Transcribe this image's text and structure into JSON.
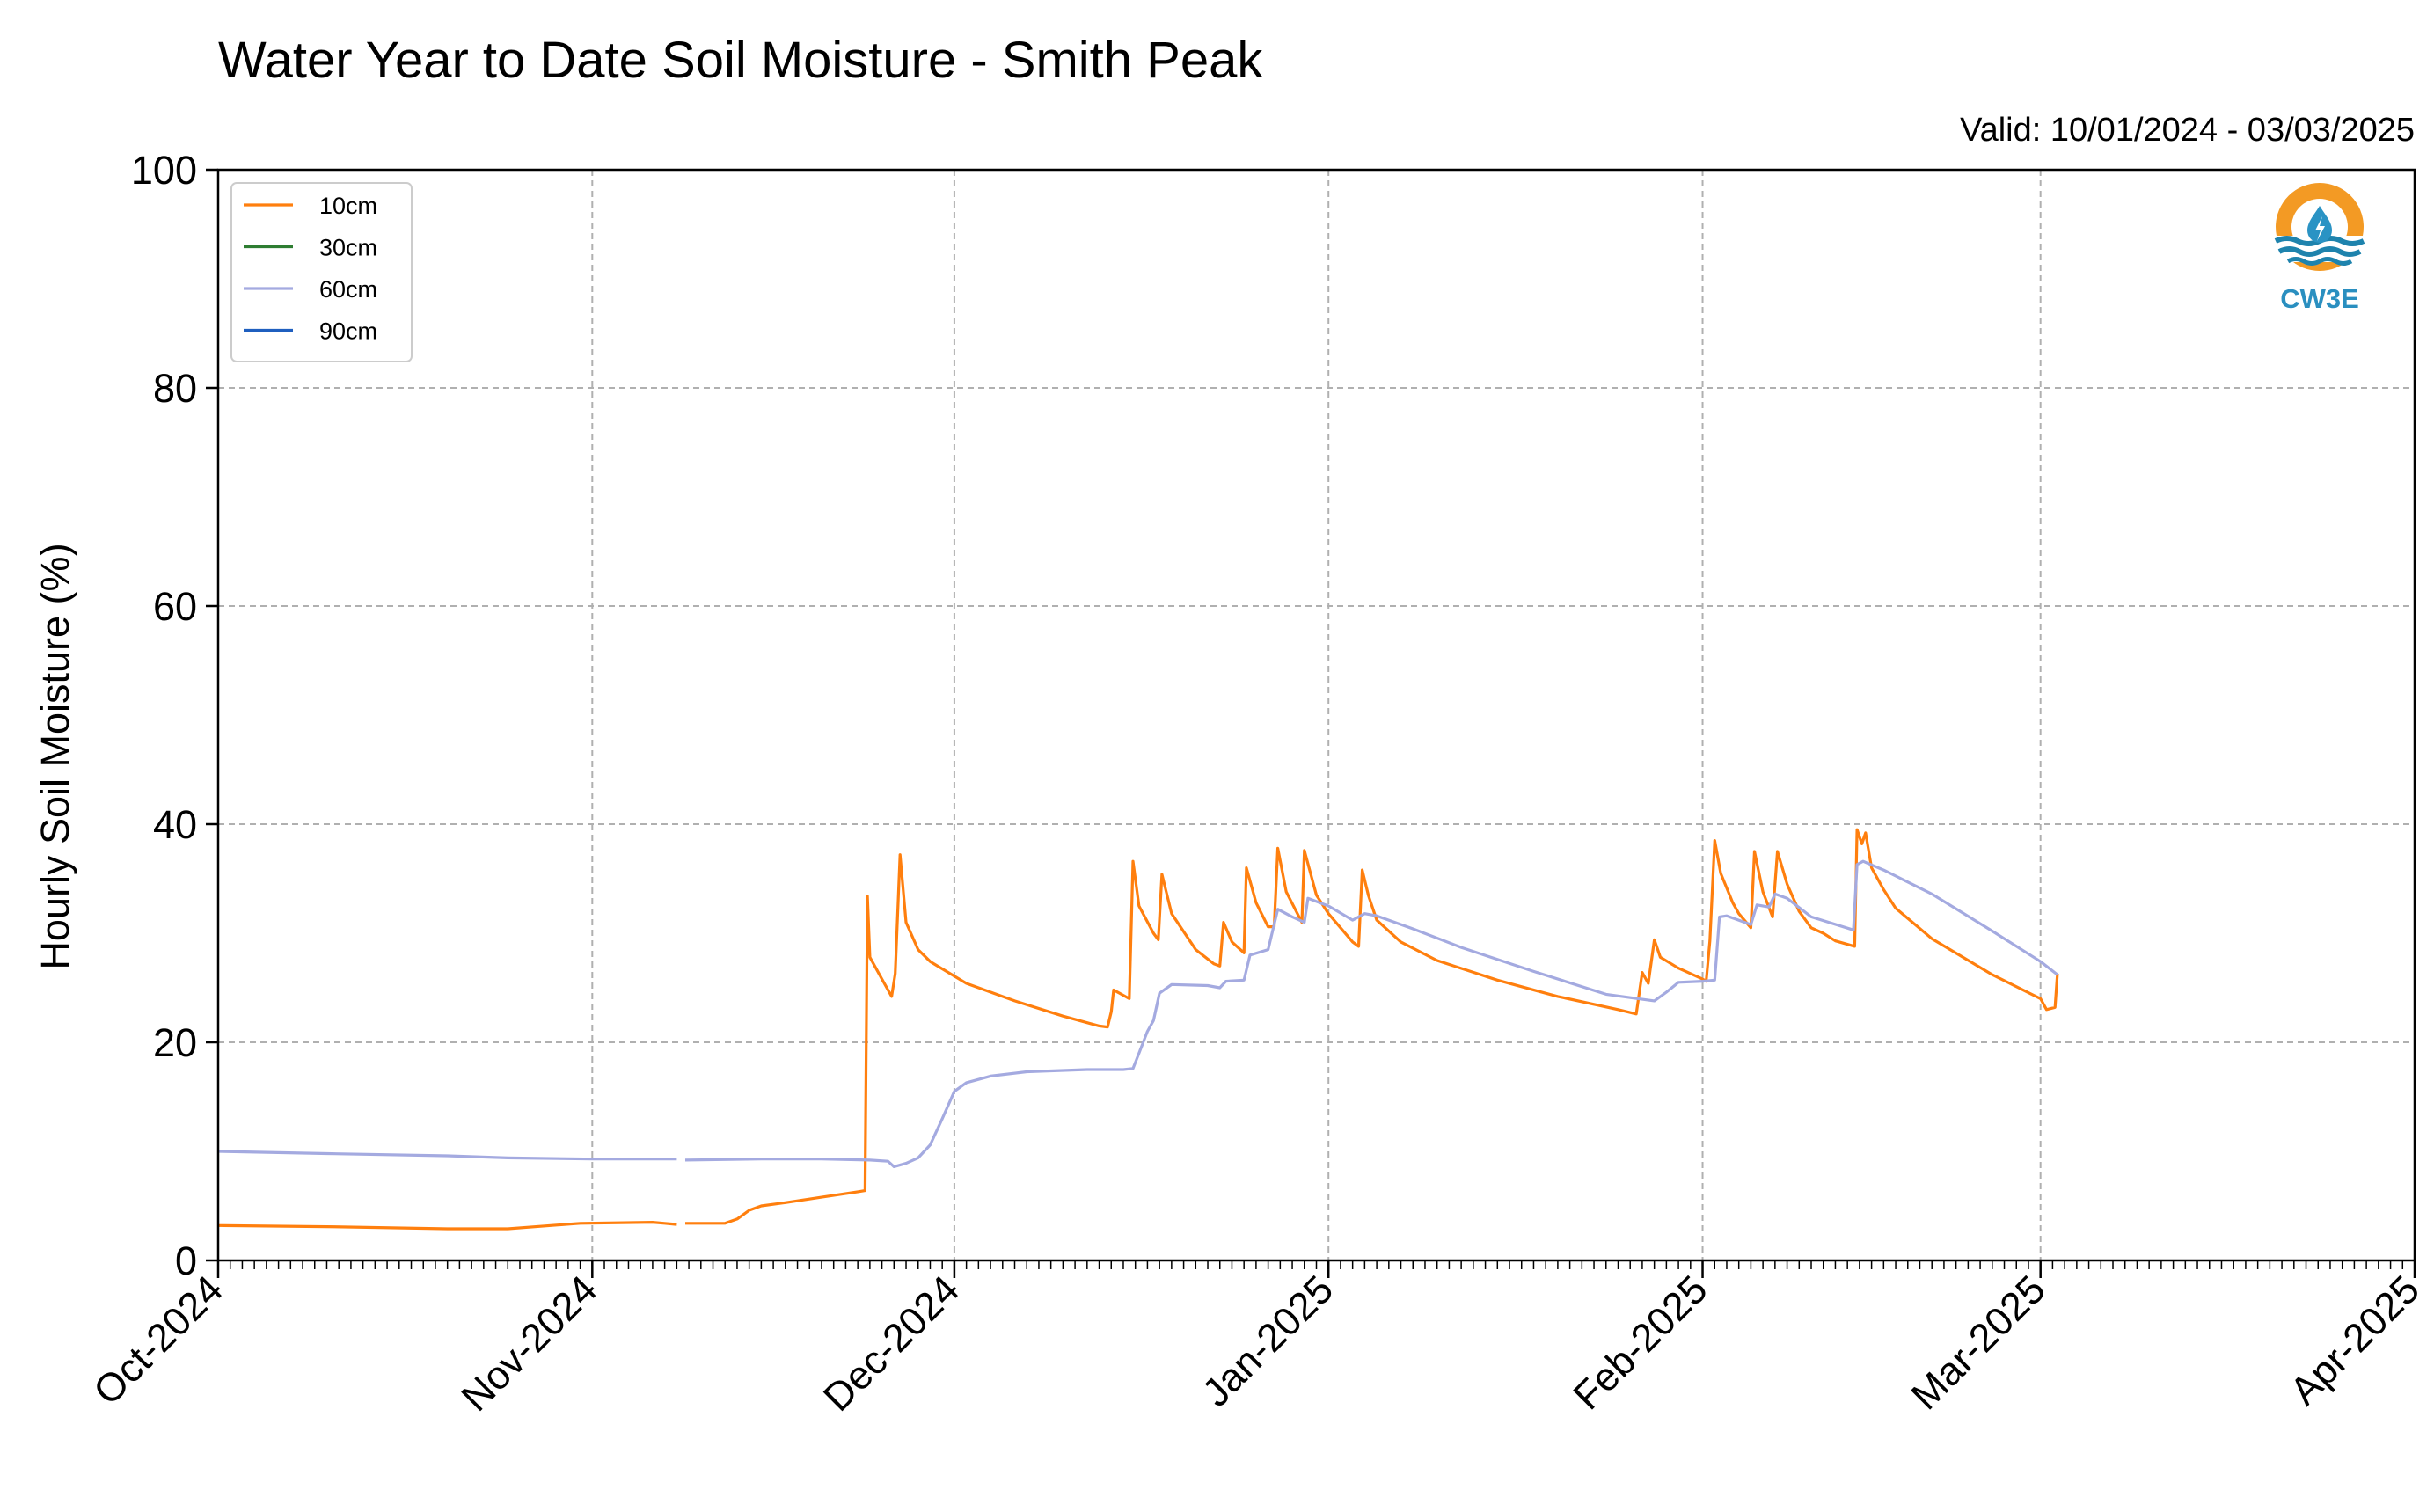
{
  "chart_data": {
    "type": "line",
    "title": "Water Year to Date Soil Moisture - Smith Peak",
    "subtitle": "Valid: 10/01/2024 - 03/03/2025",
    "xlabel": "",
    "ylabel": "Hourly Soil Moisture (%)",
    "xlim": [
      "2024-10-01",
      "2025-04-01"
    ],
    "ylim": [
      0,
      100
    ],
    "x_ticks": [
      "2024-10-01",
      "2024-11-01",
      "2024-12-01",
      "2025-01-01",
      "2025-02-01",
      "2025-03-01",
      "2025-04-01"
    ],
    "x_tick_labels": [
      "Oct-2024",
      "Nov-2024",
      "Dec-2024",
      "Jan-2025",
      "Feb-2025",
      "Mar-2025",
      "Apr-2025"
    ],
    "y_ticks": [
      0,
      20,
      40,
      60,
      80,
      100
    ],
    "grid": true,
    "legend_position": "top-left",
    "series": [
      {
        "name": "10cm",
        "color": "#ff7f0e",
        "segments": [
          [
            [
              "2024-10-01",
              3.2
            ],
            [
              "2024-10-10",
              3.1
            ],
            [
              "2024-10-20",
              2.9
            ],
            [
              "2024-10-25",
              2.9
            ],
            [
              "2024-10-31",
              3.4
            ],
            [
              "2024-11-06",
              3.5
            ],
            [
              "2024-11-07",
              3.4
            ],
            [
              "2024-11-08",
              3.3
            ]
          ],
          [
            [
              "2024-11-08.7",
              3.4
            ],
            [
              "2024-11-12",
              3.4
            ],
            [
              "2024-11-13",
              3.8
            ],
            [
              "2024-11-14",
              4.6
            ],
            [
              "2024-11-15",
              5.0
            ],
            [
              "2024-11-17",
              5.3
            ],
            [
              "2024-11-20",
              5.8
            ],
            [
              "2024-11-23",
              6.3
            ],
            [
              "2024-11-23.6",
              6.4
            ],
            [
              "2024-11-23.8",
              33.4
            ],
            [
              "2024-11-24",
              27.8
            ],
            [
              "2024-11-25",
              25.8
            ],
            [
              "2024-11-25.8",
              24.2
            ],
            [
              "2024-11-26.1",
              26.3
            ],
            [
              "2024-11-26.5",
              37.2
            ],
            [
              "2024-11-27",
              31.0
            ],
            [
              "2024-11-28",
              28.5
            ],
            [
              "2024-11-29",
              27.4
            ],
            [
              "2024-12-02",
              25.4
            ],
            [
              "2024-12-06",
              23.8
            ],
            [
              "2024-12-10",
              22.4
            ],
            [
              "2024-12-13",
              21.5
            ],
            [
              "2024-12-13.7",
              21.4
            ],
            [
              "2024-12-14",
              22.8
            ],
            [
              "2024-12-14.2",
              24.8
            ],
            [
              "2024-12-15.5",
              24.0
            ],
            [
              "2024-12-15.8",
              36.6
            ],
            [
              "2024-12-16.3",
              32.5
            ],
            [
              "2024-12-17.5",
              30.0
            ],
            [
              "2024-12-17.9",
              29.4
            ],
            [
              "2024-12-18.2",
              35.4
            ],
            [
              "2024-12-19",
              31.8
            ],
            [
              "2024-12-21",
              28.5
            ],
            [
              "2024-12-22.5",
              27.2
            ],
            [
              "2024-12-23",
              27.0
            ],
            [
              "2024-12-23.3",
              31.0
            ],
            [
              "2024-12-24",
              29.2
            ],
            [
              "2024-12-25",
              28.2
            ],
            [
              "2024-12-25.2",
              36.0
            ],
            [
              "2024-12-26",
              32.8
            ],
            [
              "2024-12-27",
              30.6
            ],
            [
              "2024-12-27.5",
              30.6
            ],
            [
              "2024-12-27.8",
              37.8
            ],
            [
              "2024-12-28.5",
              33.8
            ],
            [
              "2024-12-29.8",
              31.0
            ],
            [
              "2024-12-30",
              37.6
            ],
            [
              "2024-12-31",
              33.5
            ],
            [
              "2025-01-01",
              31.8
            ],
            [
              "2025-01-03",
              29.2
            ],
            [
              "2025-01-03.5",
              28.8
            ],
            [
              "2025-01-03.8",
              35.8
            ],
            [
              "2025-01-04.3",
              33.5
            ],
            [
              "2025-01-05",
              31.2
            ],
            [
              "2025-01-07",
              29.2
            ],
            [
              "2025-01-10",
              27.5
            ],
            [
              "2025-01-15",
              25.7
            ],
            [
              "2025-01-20",
              24.2
            ],
            [
              "2025-01-25",
              23.0
            ],
            [
              "2025-01-26.5",
              22.6
            ],
            [
              "2025-01-27",
              26.4
            ],
            [
              "2025-01-27.5",
              25.4
            ],
            [
              "2025-01-28",
              29.4
            ],
            [
              "2025-01-28.5",
              27.8
            ],
            [
              "2025-01-30",
              26.8
            ],
            [
              "2025-02-01",
              25.8
            ],
            [
              "2025-02-01.3",
              25.6
            ],
            [
              "2025-02-01.6",
              29.3
            ],
            [
              "2025-02-02",
              38.5
            ],
            [
              "2025-02-02.5",
              35.5
            ],
            [
              "2025-02-03.5",
              32.8
            ],
            [
              "2025-02-04",
              31.8
            ],
            [
              "2025-02-05",
              30.5
            ],
            [
              "2025-02-05.3",
              37.5
            ],
            [
              "2025-02-06",
              33.8
            ],
            [
              "2025-02-06.8",
              31.5
            ],
            [
              "2025-02-07.2",
              37.5
            ],
            [
              "2025-02-08",
              34.5
            ],
            [
              "2025-02-09",
              32.0
            ],
            [
              "2025-02-10",
              30.5
            ],
            [
              "2025-02-11",
              30.0
            ],
            [
              "2025-02-12",
              29.3
            ],
            [
              "2025-02-13.6",
              28.8
            ],
            [
              "2025-02-13.8",
              39.5
            ],
            [
              "2025-02-14.2",
              38.2
            ],
            [
              "2025-02-14.5",
              39.2
            ],
            [
              "2025-02-15",
              36.0
            ],
            [
              "2025-02-16",
              34.0
            ],
            [
              "2025-02-17",
              32.3
            ],
            [
              "2025-02-20",
              29.5
            ],
            [
              "2025-02-25",
              26.2
            ],
            [
              "2025-03-01",
              24.0
            ],
            [
              "2025-03-01.5",
              23.0
            ],
            [
              "2025-03-02.2",
              23.2
            ],
            [
              "2025-03-02.4",
              26.3
            ]
          ]
        ]
      },
      {
        "name": "30cm",
        "color": "#2e7d32",
        "segments": []
      },
      {
        "name": "60cm",
        "color": "#a4aae0",
        "segments": [
          [
            [
              "2024-10-01",
              10.0
            ],
            [
              "2024-10-10",
              9.8
            ],
            [
              "2024-10-20",
              9.6
            ],
            [
              "2024-10-25",
              9.4
            ],
            [
              "2024-11-01",
              9.3
            ],
            [
              "2024-11-08",
              9.3
            ]
          ],
          [
            [
              "2024-11-08.7",
              9.2
            ],
            [
              "2024-11-15",
              9.3
            ],
            [
              "2024-11-20",
              9.3
            ],
            [
              "2024-11-24",
              9.2
            ],
            [
              "2024-11-25.5",
              9.1
            ],
            [
              "2024-11-26",
              8.6
            ],
            [
              "2024-11-27",
              8.9
            ],
            [
              "2024-11-28",
              9.4
            ],
            [
              "2024-11-29",
              10.6
            ],
            [
              "2024-11-30",
              13.0
            ],
            [
              "2024-12-01",
              15.5
            ],
            [
              "2024-12-02",
              16.3
            ],
            [
              "2024-12-04",
              16.9
            ],
            [
              "2024-12-07",
              17.3
            ],
            [
              "2024-12-12",
              17.5
            ],
            [
              "2024-12-15",
              17.5
            ],
            [
              "2024-12-15.8",
              17.6
            ],
            [
              "2024-12-16.3",
              19.0
            ],
            [
              "2024-12-17",
              21.0
            ],
            [
              "2024-12-17.5",
              22.0
            ],
            [
              "2024-12-18",
              24.5
            ],
            [
              "2024-12-19",
              25.3
            ],
            [
              "2024-12-22",
              25.2
            ],
            [
              "2024-12-23",
              25.0
            ],
            [
              "2024-12-23.5",
              25.6
            ],
            [
              "2024-12-25",
              25.7
            ],
            [
              "2024-12-25.5",
              28.0
            ],
            [
              "2024-12-27",
              28.5
            ],
            [
              "2024-12-27.8",
              32.2
            ],
            [
              "2024-12-29",
              31.5
            ],
            [
              "2024-12-30",
              31.0
            ],
            [
              "2024-12-30.3",
              33.2
            ],
            [
              "2025-01-01",
              32.5
            ],
            [
              "2025-01-03",
              31.2
            ],
            [
              "2025-01-04",
              31.8
            ],
            [
              "2025-01-05",
              31.6
            ],
            [
              "2025-01-08",
              30.4
            ],
            [
              "2025-01-12",
              28.7
            ],
            [
              "2025-01-18",
              26.5
            ],
            [
              "2025-01-24",
              24.4
            ],
            [
              "2025-01-28",
              23.8
            ],
            [
              "2025-01-29",
              24.6
            ],
            [
              "2025-01-30",
              25.5
            ],
            [
              "2025-02-01",
              25.6
            ],
            [
              "2025-02-02",
              25.7
            ],
            [
              "2025-02-02.4",
              31.5
            ],
            [
              "2025-02-03",
              31.6
            ],
            [
              "2025-02-05",
              30.8
            ],
            [
              "2025-02-05.5",
              32.6
            ],
            [
              "2025-02-06.5",
              32.4
            ],
            [
              "2025-02-07",
              33.6
            ],
            [
              "2025-02-08",
              33.2
            ],
            [
              "2025-02-10",
              31.5
            ],
            [
              "2025-02-13.5",
              30.3
            ],
            [
              "2025-02-13.8",
              36.3
            ],
            [
              "2025-02-14.3",
              36.6
            ],
            [
              "2025-02-16",
              35.8
            ],
            [
              "2025-02-20",
              33.6
            ],
            [
              "2025-02-25",
              30.2
            ],
            [
              "2025-03-01",
              27.4
            ],
            [
              "2025-03-02.4",
              26.2
            ]
          ]
        ]
      },
      {
        "name": "90cm",
        "color": "#1f5fbf",
        "segments": []
      }
    ]
  },
  "logo": {
    "text": "CW3E",
    "ring_color": "#f39a24",
    "wave_color": "#1e83ad",
    "drop_color": "#2a93c4"
  },
  "axes_style": {
    "grid_color": "#b0b0b0",
    "frame_color": "#000000"
  }
}
